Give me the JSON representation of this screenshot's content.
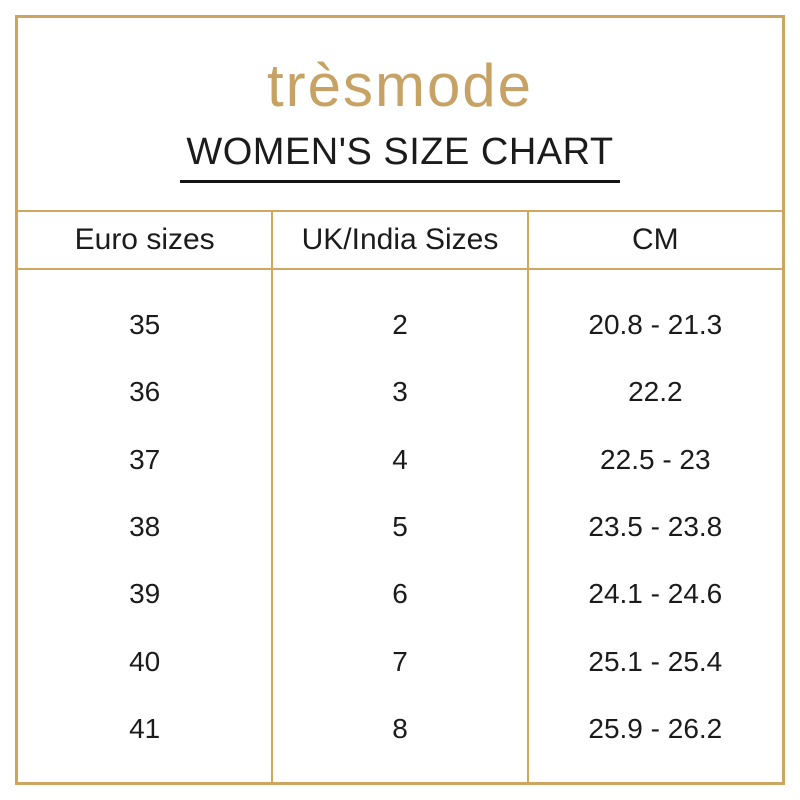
{
  "page": {
    "background_color": "#ffffff",
    "frame_color": "#CDA55E",
    "text_color": "#1b1b1b"
  },
  "header": {
    "brand": "trèsmode",
    "brand_color": "#C7A265",
    "title": "WOMEN'S SIZE CHART"
  },
  "size_table": {
    "columns": [
      "Euro sizes",
      "UK/India Sizes",
      "CM"
    ],
    "rows": [
      [
        "35",
        "2",
        "20.8 - 21.3"
      ],
      [
        "36",
        "3",
        "22.2"
      ],
      [
        "37",
        "4",
        "22.5 - 23"
      ],
      [
        "38",
        "5",
        "23.5 - 23.8"
      ],
      [
        "39",
        "6",
        "24.1 - 24.6"
      ],
      [
        "40",
        "7",
        "25.1 - 25.4"
      ],
      [
        "41",
        "8",
        "25.9 - 26.2"
      ]
    ]
  },
  "chart_data": {
    "type": "table",
    "title": "WOMEN'S SIZE CHART",
    "columns": [
      "Euro sizes",
      "UK/India Sizes",
      "CM"
    ],
    "rows": [
      [
        "35",
        "2",
        "20.8 - 21.3"
      ],
      [
        "36",
        "3",
        "22.2"
      ],
      [
        "37",
        "4",
        "22.5 - 23"
      ],
      [
        "38",
        "5",
        "23.5 - 23.8"
      ],
      [
        "39",
        "6",
        "24.1 - 24.6"
      ],
      [
        "40",
        "7",
        "25.1 - 25.4"
      ],
      [
        "41",
        "8",
        "25.9 - 26.2"
      ]
    ]
  }
}
